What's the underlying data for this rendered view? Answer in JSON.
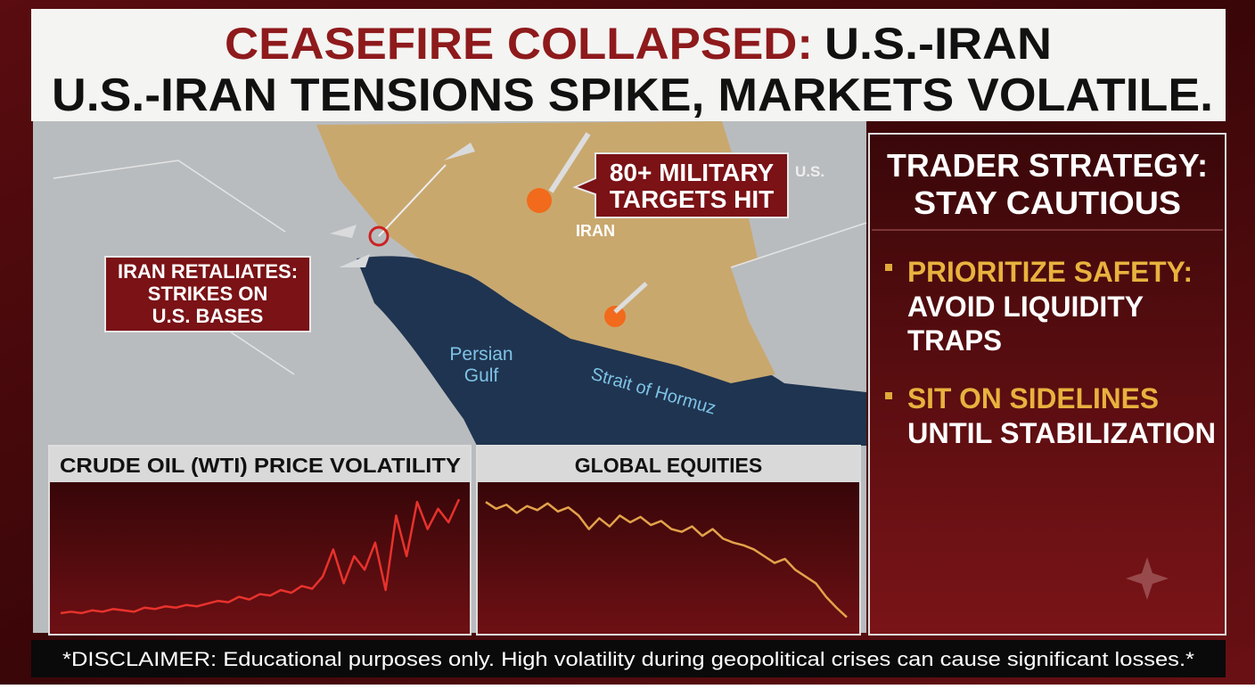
{
  "header": {
    "title_red": "CEASEFIRE COLLAPSED:",
    "title_black": "U.S.-IRAN",
    "subtitle": "U.S.-IRAN TENSIONS SPIKE, MARKETS VOLATILE."
  },
  "map": {
    "callouts": [
      {
        "lines": [
          "IRAN RETALIATES:",
          "STRIKES ON",
          "U.S. BASES"
        ]
      },
      {
        "lines": [
          "80+ MILITARY",
          "TARGETS HIT"
        ]
      }
    ],
    "labels": {
      "country": "IRAN",
      "us": "U.S.",
      "gulf": [
        "Persian",
        "Gulf"
      ],
      "strait": "Strait of Hormuz"
    }
  },
  "strategy": {
    "title": [
      "TRADER STRATEGY:",
      "STAY CAUTIOUS"
    ],
    "items": [
      {
        "head": "PRIORITIZE SAFETY:",
        "body": [
          "AVOID LIQUIDITY",
          "TRAPS"
        ]
      },
      {
        "head": "SIT ON SIDELINES",
        "body": [
          "UNTIL STABILIZATION"
        ]
      }
    ]
  },
  "chart_data": [
    {
      "type": "line",
      "title": "CRUDE OIL (WTI) PRICE VOLATILITY",
      "color": "#e8322c",
      "ylim": [
        0,
        100
      ],
      "values": [
        8,
        9,
        8,
        10,
        9,
        11,
        10,
        9,
        12,
        11,
        13,
        12,
        14,
        13,
        15,
        17,
        16,
        20,
        18,
        22,
        21,
        25,
        23,
        28,
        26,
        35,
        55,
        30,
        50,
        40,
        60,
        25,
        80,
        50,
        90,
        70,
        85,
        75,
        92
      ]
    },
    {
      "type": "line",
      "title": "GLOBAL EQUITIES",
      "color": "#e3a24a",
      "ylim": [
        0,
        100
      ],
      "values": [
        90,
        85,
        88,
        82,
        87,
        84,
        89,
        83,
        86,
        80,
        70,
        78,
        72,
        80,
        75,
        79,
        73,
        76,
        70,
        68,
        72,
        65,
        70,
        63,
        60,
        58,
        55,
        50,
        45,
        48,
        40,
        35,
        30,
        20,
        12,
        5
      ]
    }
  ],
  "disclaimer": "*DISCLAIMER: Educational purposes only. High volatility during geopolitical crises can cause significant losses.*"
}
